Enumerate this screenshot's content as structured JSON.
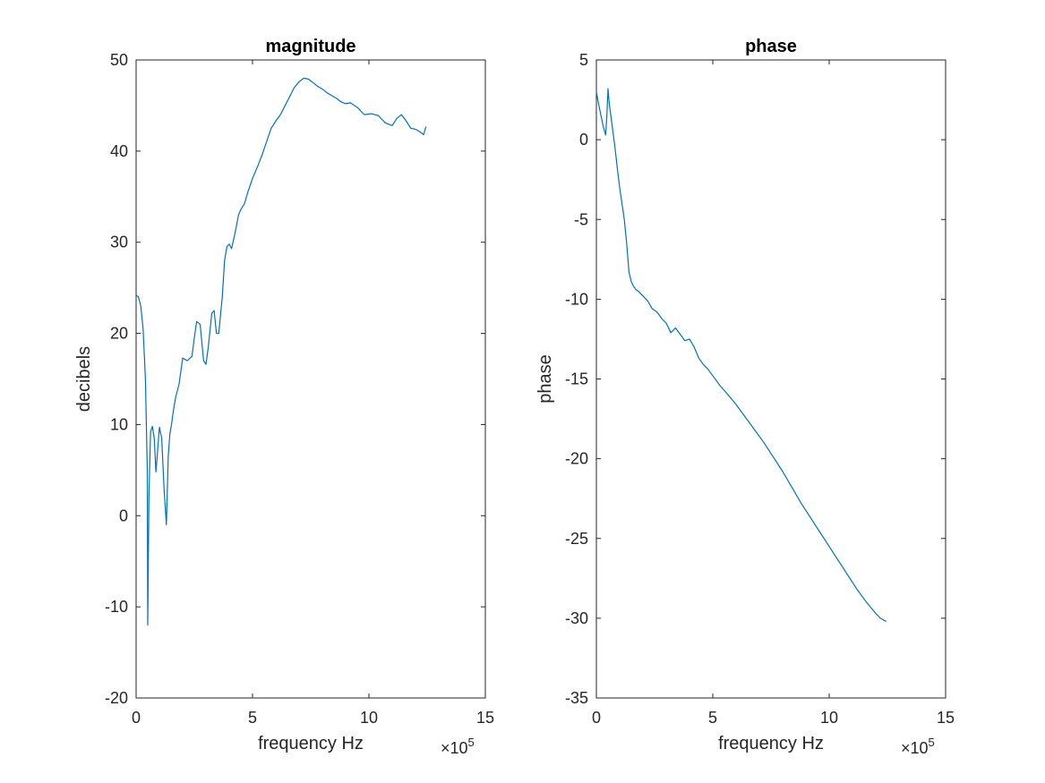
{
  "chart_data": [
    {
      "type": "line",
      "title": "magnitude",
      "xlabel": "frequency Hz",
      "ylabel": "decibels",
      "x_exponent": {
        "base": "×10",
        "power": "5"
      },
      "xlim": [
        0,
        15
      ],
      "ylim": [
        -20,
        50
      ],
      "xticks": [
        "0",
        "5",
        "10",
        "15"
      ],
      "yticks": [
        "-20",
        "-10",
        "0",
        "10",
        "20",
        "30",
        "40",
        "50"
      ],
      "grid": false,
      "color": "#0072BD",
      "series": [
        {
          "x": [
            0,
            0.1,
            0.2,
            0.3,
            0.4,
            0.48,
            0.5,
            0.55,
            0.62,
            0.7,
            0.78,
            0.85,
            0.92,
            1.0,
            1.1,
            1.2,
            1.3,
            1.38,
            1.45,
            1.52,
            1.6,
            1.7,
            1.85,
            2.0,
            2.2,
            2.4,
            2.5,
            2.6,
            2.75,
            2.9,
            3.0,
            3.1,
            3.25,
            3.35,
            3.45,
            3.55,
            3.7,
            3.8,
            3.9,
            4.0,
            4.1,
            4.25,
            4.4,
            4.5,
            4.65,
            4.8,
            5.0,
            5.2,
            5.4,
            5.6,
            5.8,
            6.0,
            6.2,
            6.4,
            6.6,
            6.8,
            7.0,
            7.2,
            7.4,
            7.6,
            7.8,
            8.0,
            8.2,
            8.4,
            8.6,
            8.8,
            9.0,
            9.2,
            9.5,
            9.8,
            10.1,
            10.4,
            10.7,
            11.0,
            11.2,
            11.4,
            11.6,
            11.8,
            12.0,
            12.2,
            12.35,
            12.45
          ],
          "y": [
            24.2,
            24.0,
            23.0,
            20.5,
            15.0,
            5.0,
            -12.0,
            2.0,
            9.2,
            9.8,
            8.5,
            4.8,
            7.0,
            9.7,
            8.5,
            3.0,
            -1.0,
            6.5,
            9.0,
            10.0,
            11.5,
            13.0,
            14.5,
            17.3,
            17.0,
            17.5,
            19.5,
            21.3,
            21.0,
            17.0,
            16.6,
            18.5,
            22.2,
            22.5,
            20.0,
            20.0,
            24.0,
            28.0,
            29.5,
            29.8,
            29.3,
            31.0,
            33.0,
            33.6,
            34.2,
            35.5,
            37.0,
            38.2,
            39.5,
            41.0,
            42.5,
            43.3,
            44.0,
            45.0,
            46.0,
            47.0,
            47.6,
            48.0,
            47.9,
            47.5,
            47.1,
            46.8,
            46.4,
            46.1,
            45.8,
            45.4,
            45.2,
            45.3,
            44.8,
            44.0,
            44.1,
            43.9,
            43.1,
            42.8,
            43.6,
            44.0,
            43.3,
            42.5,
            42.4,
            42.1,
            41.8,
            42.7
          ]
        }
      ]
    },
    {
      "type": "line",
      "title": "phase",
      "xlabel": "frequency Hz",
      "ylabel": "phase",
      "x_exponent": {
        "base": "×10",
        "power": "5"
      },
      "xlim": [
        0,
        15
      ],
      "ylim": [
        -35,
        5
      ],
      "xticks": [
        "0",
        "5",
        "10",
        "15"
      ],
      "yticks": [
        "-35",
        "-30",
        "-25",
        "-20",
        "-15",
        "-10",
        "-5",
        "0",
        "5"
      ],
      "grid": false,
      "color": "#0072BD",
      "series": [
        {
          "x": [
            0,
            0.1,
            0.2,
            0.3,
            0.4,
            0.45,
            0.5,
            0.55,
            0.65,
            0.8,
            0.9,
            1.0,
            1.1,
            1.2,
            1.3,
            1.4,
            1.5,
            1.6,
            1.7,
            1.8,
            2.0,
            2.2,
            2.4,
            2.6,
            2.8,
            3.0,
            3.2,
            3.4,
            3.6,
            3.8,
            4.0,
            4.2,
            4.4,
            4.6,
            4.8,
            5.0,
            5.3,
            5.6,
            6.0,
            6.4,
            6.8,
            7.2,
            7.6,
            8.0,
            8.4,
            8.8,
            9.2,
            9.6,
            10.0,
            10.4,
            10.8,
            11.2,
            11.6,
            12.0,
            12.2,
            12.45
          ],
          "y": [
            3.0,
            2.2,
            1.5,
            0.8,
            0.3,
            1.5,
            3.2,
            2.3,
            1.2,
            -0.5,
            -1.8,
            -3.0,
            -4.0,
            -5.0,
            -6.5,
            -8.3,
            -8.9,
            -9.2,
            -9.4,
            -9.5,
            -9.8,
            -10.1,
            -10.6,
            -10.8,
            -11.2,
            -11.5,
            -12.1,
            -11.8,
            -12.2,
            -12.6,
            -12.5,
            -13.0,
            -13.7,
            -14.1,
            -14.4,
            -14.8,
            -15.4,
            -15.9,
            -16.6,
            -17.4,
            -18.2,
            -19.0,
            -19.9,
            -20.8,
            -21.8,
            -22.8,
            -23.7,
            -24.6,
            -25.5,
            -26.4,
            -27.3,
            -28.2,
            -29.0,
            -29.7,
            -30.0,
            -30.2
          ]
        }
      ]
    }
  ]
}
